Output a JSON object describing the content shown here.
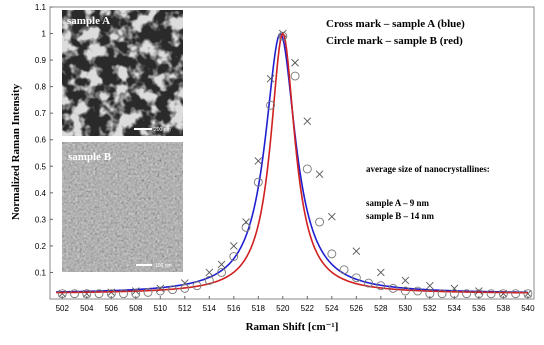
{
  "chart_data": {
    "type": "line",
    "xlabel": "Raman Shift [cm⁻¹]",
    "ylabel": "Normalized Raman Intensity",
    "xlim": [
      501,
      540.5
    ],
    "ylim": [
      0,
      1.1
    ],
    "x_ticks": [
      "502",
      "504",
      "506",
      "508",
      "510",
      "512",
      "514",
      "516",
      "518",
      "520",
      "522",
      "524",
      "526",
      "528",
      "530",
      "532",
      "534",
      "536",
      "538",
      "540"
    ],
    "y_ticks": [
      "0.1",
      "0.2",
      "0.3",
      "0.4",
      "0.5",
      "0.6",
      "0.7",
      "0.8",
      "0.9",
      "1",
      "1.1"
    ],
    "legend_lines": [
      "Cross mark – sample A (blue)",
      "Circle mark – sample B (red)"
    ],
    "annotation": {
      "heading": "average size of nanocrystallines:",
      "lines": [
        "sample A –   9 nm",
        "sample B – 14 nm"
      ]
    },
    "insets": [
      {
        "label": "sample A",
        "scale_bar": "200 nm"
      },
      {
        "label": "sample B",
        "scale_bar": "100 nm"
      }
    ],
    "series": [
      {
        "color": "#2020d0",
        "marker": "cross",
        "center": 519.8,
        "hwhm": 1.5,
        "x": [
          502,
          504,
          506,
          508,
          510,
          512,
          514,
          515,
          516,
          517,
          518,
          519,
          520,
          521,
          522,
          523,
          524,
          526,
          528,
          530,
          532,
          534,
          536,
          538,
          540
        ],
        "y": [
          0.02,
          0.02,
          0.025,
          0.03,
          0.04,
          0.06,
          0.1,
          0.13,
          0.2,
          0.29,
          0.52,
          0.83,
          1.0,
          0.89,
          0.67,
          0.47,
          0.31,
          0.18,
          0.1,
          0.07,
          0.05,
          0.04,
          0.03,
          0.02,
          0.02
        ]
      },
      {
        "color": "#d02020",
        "marker": "circle",
        "center": 520.0,
        "hwhm": 1.2,
        "x": [
          502,
          503,
          504,
          505,
          506,
          507,
          508,
          509,
          510,
          511,
          512,
          513,
          514,
          515,
          516,
          517,
          518,
          519,
          520,
          521,
          522,
          523,
          524,
          525,
          526,
          527,
          528,
          529,
          530,
          531,
          532,
          533,
          534,
          535,
          536,
          537,
          538,
          539,
          540
        ],
        "y": [
          0.02,
          0.02,
          0.02,
          0.02,
          0.02,
          0.02,
          0.02,
          0.025,
          0.03,
          0.035,
          0.04,
          0.05,
          0.07,
          0.1,
          0.16,
          0.27,
          0.44,
          0.73,
          0.99,
          0.84,
          0.49,
          0.29,
          0.17,
          0.11,
          0.08,
          0.06,
          0.05,
          0.04,
          0.03,
          0.03,
          0.02,
          0.02,
          0.02,
          0.02,
          0.02,
          0.02,
          0.02,
          0.02,
          0.02
        ]
      }
    ]
  }
}
